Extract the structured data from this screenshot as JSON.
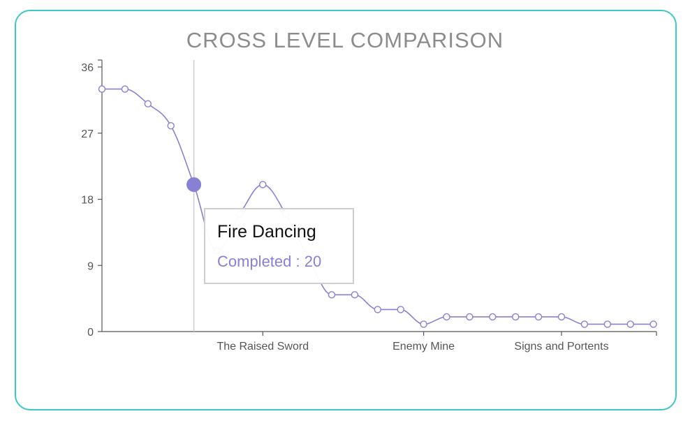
{
  "title": "CROSS LEVEL COMPARISON",
  "colors": {
    "border": "#3fc7c7",
    "line": "#8880d4",
    "axis": "#555555",
    "title": "#8c8c8c",
    "cursor": "#cccccc"
  },
  "tooltip": {
    "name": "Fire Dancing",
    "metric_label": "Completed",
    "separator": " : ",
    "value": "20"
  },
  "chart_data": {
    "type": "line",
    "title": "CROSS LEVEL COMPARISON",
    "xlabel": "",
    "ylabel": "",
    "ylim": [
      0,
      36
    ],
    "yticks": [
      0,
      9,
      18,
      27,
      36
    ],
    "x_tick_labels": [
      {
        "index": 7,
        "label": "The Raised Sword"
      },
      {
        "index": 14,
        "label": "Enemy Mine"
      },
      {
        "index": 20,
        "label": "Signs and Portents"
      }
    ],
    "series": [
      {
        "values": [
          33,
          33,
          31,
          28,
          20,
          11,
          16,
          20,
          16,
          10,
          5,
          5,
          3,
          3,
          1,
          2,
          2,
          2,
          2,
          2,
          2,
          1,
          1,
          1,
          1
        ],
        "highlighted_index": 4,
        "highlighted_label": "Fire Dancing"
      }
    ],
    "grid": false,
    "cursor_index": 4
  }
}
